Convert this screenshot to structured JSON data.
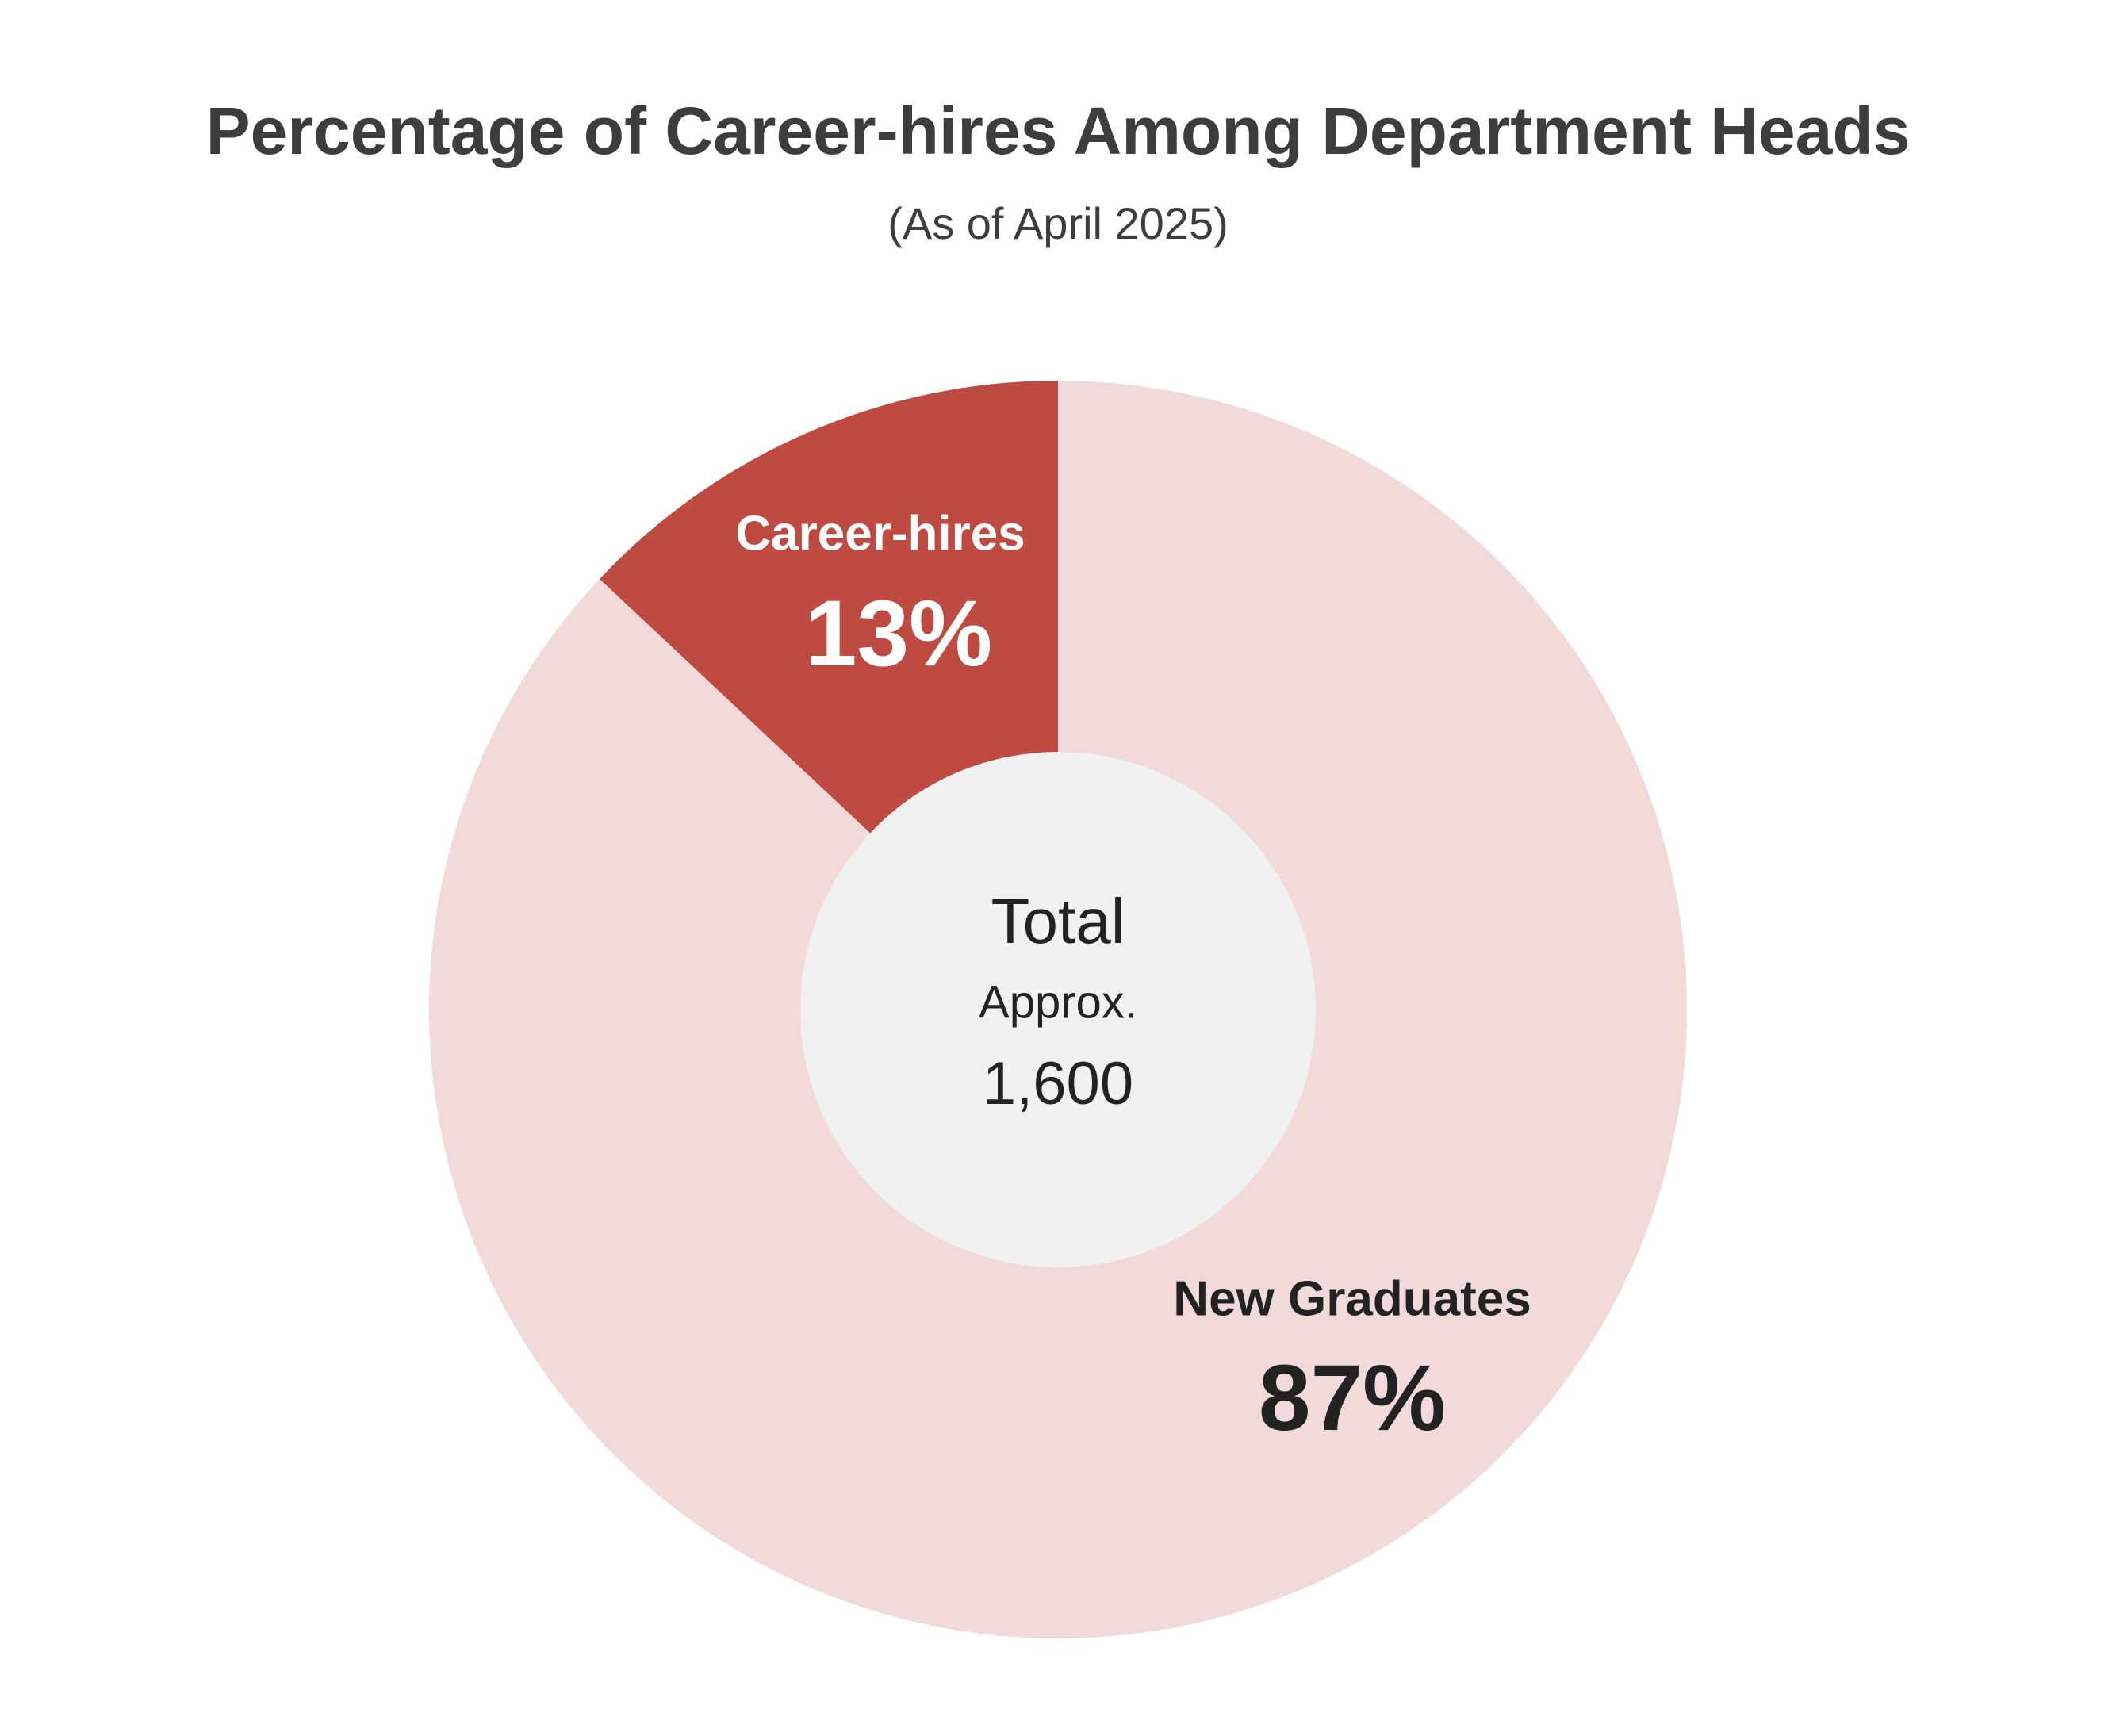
{
  "chart_data": {
    "type": "pie",
    "title": "Percentage of Career-hires Among Department Heads",
    "subtitle": "(As of April 2025)",
    "categories": [
      "Career-hires",
      "New Graduates"
    ],
    "values": [
      13,
      87
    ],
    "value_labels": [
      "13%",
      "87%"
    ],
    "colors": [
      "#bf4a42",
      "#f2dada"
    ],
    "label_colors": [
      "#ffffff",
      "#222222"
    ],
    "center_color": "#f1f1f1",
    "center_text": [
      "Total",
      "Approx.",
      "1,600"
    ]
  }
}
